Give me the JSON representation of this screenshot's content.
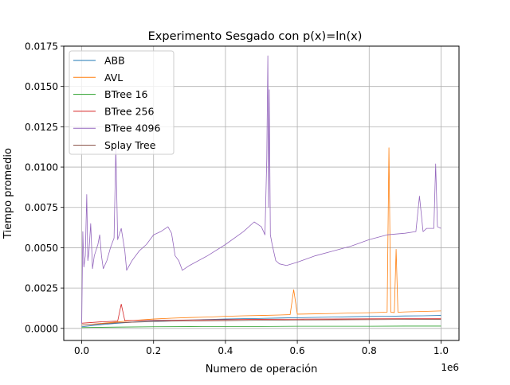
{
  "chart_data": {
    "type": "line",
    "title": "Experimento Sesgado con p(x)=ln(x)",
    "xlabel": "Numero de operación",
    "ylabel": "Tiempo promedio",
    "x_offset_label": "1e6",
    "xlim": [
      -0.05,
      1.05
    ],
    "ylim": [
      -0.00075,
      0.0175
    ],
    "grid": true,
    "legend_position": "top-left",
    "x_ticks": [
      {
        "value": 0.0,
        "label": "0.0"
      },
      {
        "value": 0.2,
        "label": "0.2"
      },
      {
        "value": 0.4,
        "label": "0.4"
      },
      {
        "value": 0.6,
        "label": "0.6"
      },
      {
        "value": 0.8,
        "label": "0.8"
      },
      {
        "value": 1.0,
        "label": "1.0"
      }
    ],
    "y_ticks": [
      {
        "value": 0.0,
        "label": "0.0000"
      },
      {
        "value": 0.0025,
        "label": "0.0025"
      },
      {
        "value": 0.005,
        "label": "0.0050"
      },
      {
        "value": 0.0075,
        "label": "0.0075"
      },
      {
        "value": 0.01,
        "label": "0.0100"
      },
      {
        "value": 0.0125,
        "label": "0.0125"
      },
      {
        "value": 0.015,
        "label": "0.0150"
      },
      {
        "value": 0.0175,
        "label": "0.0175"
      }
    ],
    "series": [
      {
        "name": "ABB",
        "color": "#1f77b4",
        "x": [
          0.0,
          0.05,
          0.1,
          0.15,
          0.2,
          0.25,
          0.3,
          0.35,
          0.4,
          0.45,
          0.5,
          0.55,
          0.6,
          0.65,
          0.7,
          0.75,
          0.8,
          0.85,
          0.9,
          0.95,
          1.0
        ],
        "y": [
          0.0001,
          0.00022,
          0.00032,
          0.0004,
          0.00045,
          0.0005,
          0.00052,
          0.00055,
          0.00058,
          0.0006,
          0.00062,
          0.00064,
          0.00066,
          0.00068,
          0.0007,
          0.00072,
          0.00074,
          0.00075,
          0.00077,
          0.00078,
          0.0008
        ]
      },
      {
        "name": "AVL",
        "color": "#ff7f0e",
        "x": [
          0.0,
          0.05,
          0.1,
          0.15,
          0.2,
          0.25,
          0.3,
          0.35,
          0.4,
          0.45,
          0.5,
          0.55,
          0.58,
          0.59,
          0.6,
          0.65,
          0.7,
          0.75,
          0.8,
          0.85,
          0.855,
          0.86,
          0.87,
          0.875,
          0.88,
          0.9,
          0.95,
          1.0
        ],
        "y": [
          0.0002,
          0.0003,
          0.0004,
          0.0005,
          0.00058,
          0.00063,
          0.00067,
          0.0007,
          0.00075,
          0.00078,
          0.0008,
          0.00083,
          0.00085,
          0.0024,
          0.00088,
          0.0009,
          0.00092,
          0.00095,
          0.00097,
          0.001,
          0.0112,
          0.001,
          0.00098,
          0.0049,
          0.001,
          0.00102,
          0.00105,
          0.00108
        ]
      },
      {
        "name": "BTree 16",
        "color": "#2ca02c",
        "x": [
          0.0,
          0.1,
          0.2,
          0.3,
          0.4,
          0.5,
          0.6,
          0.7,
          0.8,
          0.9,
          1.0
        ],
        "y": [
          5e-05,
          8e-05,
          0.0001,
          0.00011,
          0.00012,
          0.00012,
          0.00013,
          0.00013,
          0.00013,
          0.00014,
          0.00014
        ]
      },
      {
        "name": "BTree 256",
        "color": "#d62728",
        "x": [
          0.0,
          0.05,
          0.1,
          0.11,
          0.12,
          0.2,
          0.3,
          0.4,
          0.5,
          0.6,
          0.7,
          0.8,
          0.9,
          1.0
        ],
        "y": [
          0.00032,
          0.0004,
          0.00045,
          0.0015,
          0.00048,
          0.0005,
          0.00052,
          0.00054,
          0.00056,
          0.00057,
          0.00058,
          0.00059,
          0.0006,
          0.0006
        ]
      },
      {
        "name": "BTree 4096",
        "color": "#9467bd",
        "x": [
          0.0,
          0.003,
          0.006,
          0.01,
          0.014,
          0.017,
          0.02,
          0.025,
          0.03,
          0.035,
          0.045,
          0.05,
          0.055,
          0.06,
          0.07,
          0.08,
          0.09,
          0.095,
          0.1,
          0.11,
          0.12,
          0.125,
          0.13,
          0.14,
          0.16,
          0.18,
          0.2,
          0.22,
          0.24,
          0.25,
          0.26,
          0.27,
          0.28,
          0.3,
          0.35,
          0.4,
          0.45,
          0.48,
          0.5,
          0.51,
          0.515,
          0.518,
          0.52,
          0.522,
          0.525,
          0.53,
          0.54,
          0.55,
          0.57,
          0.6,
          0.65,
          0.7,
          0.75,
          0.8,
          0.85,
          0.9,
          0.93,
          0.94,
          0.95,
          0.96,
          0.98,
          0.985,
          0.99,
          1.0
        ],
        "y": [
          0.0003,
          0.006,
          0.0038,
          0.0045,
          0.0083,
          0.0042,
          0.0047,
          0.0065,
          0.0037,
          0.0045,
          0.0052,
          0.0058,
          0.0045,
          0.0037,
          0.0042,
          0.005,
          0.0056,
          0.0112,
          0.0055,
          0.0062,
          0.0048,
          0.0036,
          0.0038,
          0.0042,
          0.0048,
          0.0052,
          0.0058,
          0.006,
          0.0063,
          0.0059,
          0.0045,
          0.0042,
          0.0036,
          0.0039,
          0.0045,
          0.0052,
          0.006,
          0.0066,
          0.0063,
          0.0058,
          0.0105,
          0.0169,
          0.0075,
          0.0148,
          0.0058,
          0.0052,
          0.0042,
          0.004,
          0.0039,
          0.0041,
          0.0045,
          0.0048,
          0.0051,
          0.0055,
          0.0058,
          0.0059,
          0.006,
          0.0082,
          0.006,
          0.0062,
          0.0062,
          0.0102,
          0.0063,
          0.0062
        ]
      },
      {
        "name": "Splay Tree",
        "color": "#8c564b",
        "x": [
          0.0,
          0.1,
          0.2,
          0.3,
          0.4,
          0.5,
          0.6,
          0.7,
          0.8,
          0.9,
          1.0
        ],
        "y": [
          0.0002,
          0.00035,
          0.00042,
          0.00046,
          0.00048,
          0.0005,
          0.00052,
          0.00053,
          0.00054,
          0.00055,
          0.00056
        ]
      }
    ]
  }
}
